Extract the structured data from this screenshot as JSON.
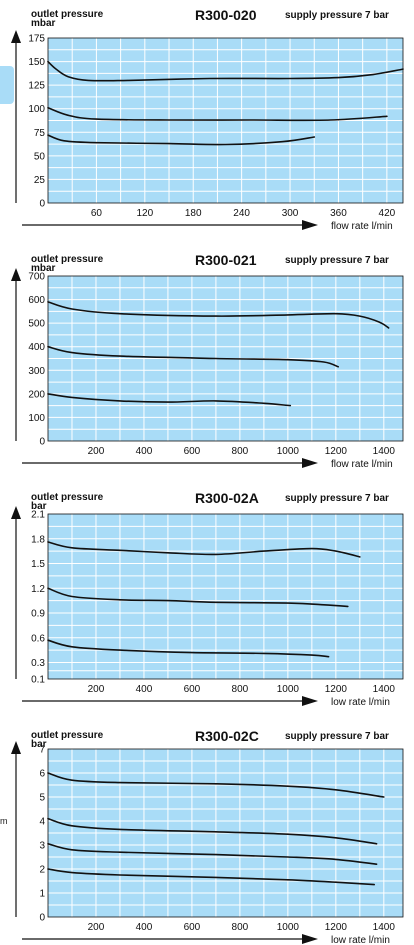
{
  "side_text": "m",
  "chart_data": [
    {
      "type": "line",
      "title": "R300-020",
      "ylabel": "outlet pressure\nmbar",
      "subtitle": "supply pressure 7 bar",
      "xlabel": "flow rate l/min",
      "x_ticks": [
        60,
        120,
        180,
        240,
        300,
        360,
        420
      ],
      "y_ticks": [
        0,
        25,
        50,
        75,
        100,
        125,
        150,
        175
      ],
      "xlim": [
        0,
        440
      ],
      "ylim": [
        0,
        175
      ],
      "grid": true,
      "series": [
        {
          "x": [
            0,
            10,
            25,
            50,
            100,
            200,
            300,
            360,
            400,
            440
          ],
          "values": [
            150,
            142,
            134,
            130,
            130,
            132,
            132,
            133,
            136,
            142
          ]
        },
        {
          "x": [
            0,
            25,
            60,
            150,
            250,
            350,
            420
          ],
          "values": [
            101,
            93,
            89,
            88,
            88,
            88,
            92
          ]
        },
        {
          "x": [
            0,
            20,
            60,
            150,
            220,
            290,
            330
          ],
          "values": [
            72,
            66,
            64,
            63,
            62,
            65,
            70
          ]
        }
      ]
    },
    {
      "type": "line",
      "title": "R300-021",
      "ylabel": "outlet pressure\nmbar",
      "subtitle": "supply pressure 7 bar",
      "xlabel": "flow rate l/min",
      "x_ticks": [
        200,
        400,
        600,
        800,
        1000,
        1200,
        1400
      ],
      "y_ticks": [
        0,
        100,
        200,
        300,
        400,
        500,
        600,
        700
      ],
      "xlim": [
        0,
        1480
      ],
      "ylim": [
        0,
        700
      ],
      "grid": true,
      "series": [
        {
          "x": [
            0,
            100,
            300,
            700,
            1000,
            1200,
            1300,
            1380,
            1420
          ],
          "values": [
            590,
            560,
            540,
            530,
            535,
            540,
            530,
            505,
            480
          ]
        },
        {
          "x": [
            0,
            100,
            300,
            700,
            1000,
            1150,
            1210
          ],
          "values": [
            400,
            375,
            360,
            350,
            345,
            335,
            315
          ]
        },
        {
          "x": [
            0,
            100,
            300,
            500,
            700,
            900,
            1010
          ],
          "values": [
            200,
            185,
            170,
            165,
            170,
            160,
            150
          ]
        }
      ]
    },
    {
      "type": "line",
      "title": "R300-02A",
      "ylabel": "outlet pressure\nbar",
      "subtitle": "supply pressure 7 bar",
      "xlabel": "low rate l/min",
      "x_ticks": [
        200,
        400,
        600,
        800,
        1000,
        1200,
        1400
      ],
      "y_ticks": [
        0.1,
        0.3,
        0.6,
        0.9,
        1.2,
        1.5,
        1.8,
        2.1
      ],
      "xlim": [
        0,
        1480
      ],
      "ylim": [
        0.1,
        2.1
      ],
      "grid": true,
      "series": [
        {
          "x": [
            0,
            100,
            300,
            500,
            700,
            900,
            1100,
            1200,
            1300
          ],
          "values": [
            1.76,
            1.69,
            1.66,
            1.63,
            1.61,
            1.65,
            1.68,
            1.65,
            1.58
          ]
        },
        {
          "x": [
            0,
            100,
            300,
            500,
            700,
            1000,
            1150,
            1250
          ],
          "values": [
            1.2,
            1.1,
            1.06,
            1.05,
            1.03,
            1.02,
            1.0,
            0.98
          ]
        },
        {
          "x": [
            0,
            100,
            300,
            600,
            900,
            1100,
            1170
          ],
          "values": [
            0.57,
            0.49,
            0.45,
            0.42,
            0.41,
            0.39,
            0.37
          ]
        }
      ]
    },
    {
      "type": "line",
      "title": "R300-02C",
      "ylabel": "outlet pressure\nbar",
      "subtitle": "supply pressure 7 bar",
      "xlabel": "low rate l/min",
      "x_ticks": [
        200,
        400,
        600,
        800,
        1000,
        1200,
        1400
      ],
      "y_ticks": [
        0,
        1,
        2,
        3,
        4,
        5,
        6,
        7
      ],
      "xlim": [
        0,
        1480
      ],
      "ylim": [
        0,
        7
      ],
      "grid": true,
      "series": [
        {
          "x": [
            0,
            100,
            300,
            700,
            1000,
            1200,
            1400
          ],
          "values": [
            6.0,
            5.7,
            5.6,
            5.55,
            5.45,
            5.3,
            5.0
          ]
        },
        {
          "x": [
            0,
            100,
            300,
            700,
            1000,
            1200,
            1370
          ],
          "values": [
            4.1,
            3.8,
            3.65,
            3.55,
            3.45,
            3.3,
            3.05
          ]
        },
        {
          "x": [
            0,
            100,
            300,
            700,
            1000,
            1200,
            1370
          ],
          "values": [
            3.05,
            2.8,
            2.7,
            2.6,
            2.5,
            2.4,
            2.2
          ]
        },
        {
          "x": [
            0,
            100,
            300,
            700,
            1000,
            1200,
            1360
          ],
          "values": [
            2.0,
            1.85,
            1.75,
            1.65,
            1.55,
            1.45,
            1.35
          ]
        }
      ]
    }
  ],
  "colors": {
    "plot_bg": "#a9dcf7",
    "grid": "#ffffff",
    "line": "#111111",
    "axis": "#111111"
  }
}
